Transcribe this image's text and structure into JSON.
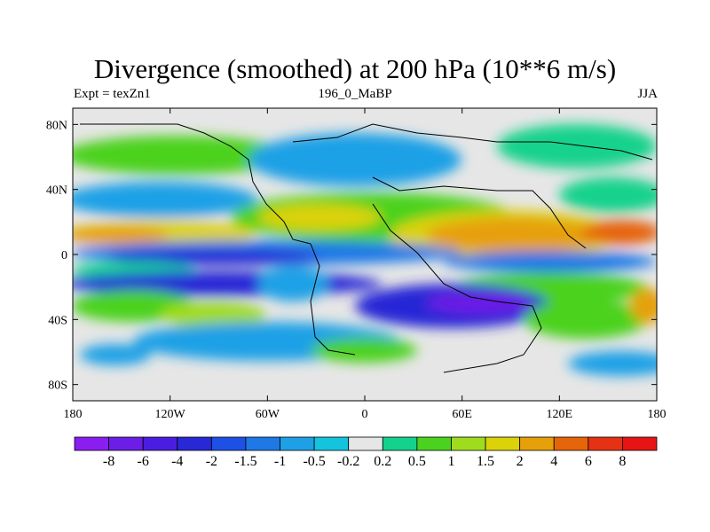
{
  "chart_data": {
    "type": "heatmap",
    "title": "Divergence (smoothed) at 200 hPa (10**6 m/s)",
    "subtitle_left": "Expt = texZn1",
    "subtitle_center": "196_0_MaBP",
    "subtitle_right": "JJA",
    "x_ticks": [
      {
        "value": -180,
        "label": "180"
      },
      {
        "value": -120,
        "label": "120W"
      },
      {
        "value": -60,
        "label": "60W"
      },
      {
        "value": 0,
        "label": "0"
      },
      {
        "value": 60,
        "label": "60E"
      },
      {
        "value": 120,
        "label": "120E"
      },
      {
        "value": 180,
        "label": "180"
      }
    ],
    "y_ticks": [
      {
        "value": 80,
        "label": "80N"
      },
      {
        "value": 40,
        "label": "40N"
      },
      {
        "value": 0,
        "label": "0"
      },
      {
        "value": -40,
        "label": "40S"
      },
      {
        "value": -80,
        "label": "80S"
      }
    ],
    "xlim": [
      -180,
      180
    ],
    "ylim": [
      -90,
      90
    ],
    "contour_levels": [
      "-8",
      "-6",
      "-4",
      "-2",
      "-1.5",
      "-1",
      "-0.5",
      "-0.2",
      "0.2",
      "0.5",
      "1",
      "1.5",
      "2",
      "4",
      "6",
      "8"
    ],
    "colorbar_colors": [
      "#8a1ef0",
      "#6c1ee6",
      "#4a1ee0",
      "#2828d6",
      "#1e50e6",
      "#1e78e6",
      "#1ea0e6",
      "#14c3de",
      "#e6e6e6",
      "#14d28c",
      "#4bd21e",
      "#a0dc1e",
      "#dcd20a",
      "#e6a00a",
      "#e6640a",
      "#e63214",
      "#e61414"
    ],
    "approx_fields": [
      {
        "region": "subtropical band 0-30N, Africa to W Pacific",
        "value": 2
      },
      {
        "region": "south Indian Ocean ~30S, 40-110E",
        "value": -6
      },
      {
        "region": "equatorial band ~10S across Pacific",
        "value": -1.5
      },
      {
        "region": "high latitudes",
        "value": 0
      }
    ]
  }
}
